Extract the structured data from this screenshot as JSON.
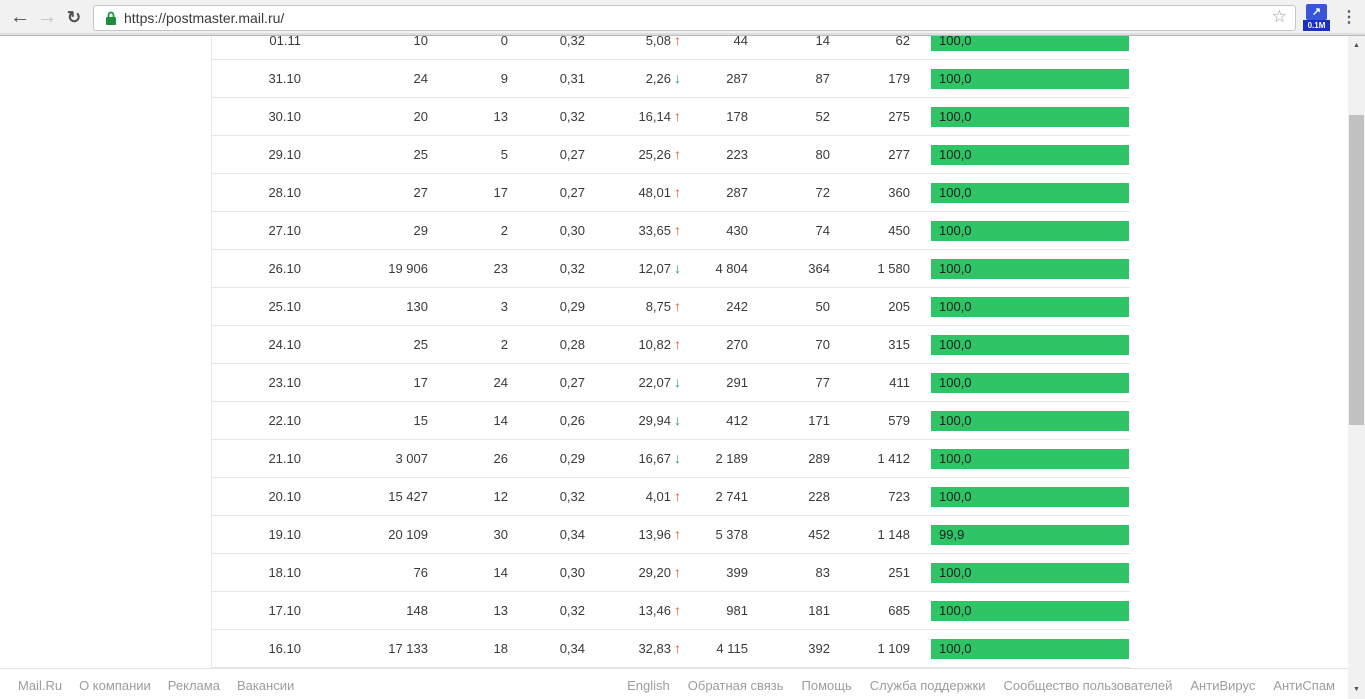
{
  "browser": {
    "url": "https://postmaster.mail.ru/",
    "extension_badge": "0.1M",
    "extension_glyph": "↗",
    "back_glyph": "←",
    "forward_glyph": "→",
    "reload_glyph": "↻",
    "star_glyph": "☆",
    "menu_glyph": "⋮",
    "scroll_up_glyph": "▲",
    "scroll_down_glyph": "▼"
  },
  "colors": {
    "bar_green": "#2fc465",
    "trend_up": "#e0532a",
    "trend_down": "#2ba55a",
    "lock_green": "#1e8e3e"
  },
  "table": {
    "rows": [
      {
        "date": "01.11",
        "v1": "10",
        "v2": "0",
        "v3": "0,32",
        "change": "5,08",
        "dir": "up",
        "v5": "44",
        "v6": "14",
        "v7": "62",
        "bar_label": "100,0",
        "bar_pct": 100.0
      },
      {
        "date": "31.10",
        "v1": "24",
        "v2": "9",
        "v3": "0,31",
        "change": "2,26",
        "dir": "down",
        "v5": "287",
        "v6": "87",
        "v7": "179",
        "bar_label": "100,0",
        "bar_pct": 100.0
      },
      {
        "date": "30.10",
        "v1": "20",
        "v2": "13",
        "v3": "0,32",
        "change": "16,14",
        "dir": "up",
        "v5": "178",
        "v6": "52",
        "v7": "275",
        "bar_label": "100,0",
        "bar_pct": 100.0
      },
      {
        "date": "29.10",
        "v1": "25",
        "v2": "5",
        "v3": "0,27",
        "change": "25,26",
        "dir": "up",
        "v5": "223",
        "v6": "80",
        "v7": "277",
        "bar_label": "100,0",
        "bar_pct": 100.0
      },
      {
        "date": "28.10",
        "v1": "27",
        "v2": "17",
        "v3": "0,27",
        "change": "48,01",
        "dir": "up",
        "v5": "287",
        "v6": "72",
        "v7": "360",
        "bar_label": "100,0",
        "bar_pct": 100.0
      },
      {
        "date": "27.10",
        "v1": "29",
        "v2": "2",
        "v3": "0,30",
        "change": "33,65",
        "dir": "up",
        "v5": "430",
        "v6": "74",
        "v7": "450",
        "bar_label": "100,0",
        "bar_pct": 100.0
      },
      {
        "date": "26.10",
        "v1": "19 906",
        "v2": "23",
        "v3": "0,32",
        "change": "12,07",
        "dir": "down",
        "v5": "4 804",
        "v6": "364",
        "v7": "1 580",
        "bar_label": "100,0",
        "bar_pct": 100.0
      },
      {
        "date": "25.10",
        "v1": "130",
        "v2": "3",
        "v3": "0,29",
        "change": "8,75",
        "dir": "up",
        "v5": "242",
        "v6": "50",
        "v7": "205",
        "bar_label": "100,0",
        "bar_pct": 100.0
      },
      {
        "date": "24.10",
        "v1": "25",
        "v2": "2",
        "v3": "0,28",
        "change": "10,82",
        "dir": "up",
        "v5": "270",
        "v6": "70",
        "v7": "315",
        "bar_label": "100,0",
        "bar_pct": 100.0
      },
      {
        "date": "23.10",
        "v1": "17",
        "v2": "24",
        "v3": "0,27",
        "change": "22,07",
        "dir": "down",
        "v5": "291",
        "v6": "77",
        "v7": "411",
        "bar_label": "100,0",
        "bar_pct": 100.0
      },
      {
        "date": "22.10",
        "v1": "15",
        "v2": "14",
        "v3": "0,26",
        "change": "29,94",
        "dir": "down",
        "v5": "412",
        "v6": "171",
        "v7": "579",
        "bar_label": "100,0",
        "bar_pct": 100.0
      },
      {
        "date": "21.10",
        "v1": "3 007",
        "v2": "26",
        "v3": "0,29",
        "change": "16,67",
        "dir": "down",
        "v5": "2 189",
        "v6": "289",
        "v7": "1 412",
        "bar_label": "100,0",
        "bar_pct": 100.0
      },
      {
        "date": "20.10",
        "v1": "15 427",
        "v2": "12",
        "v3": "0,32",
        "change": "4,01",
        "dir": "up",
        "v5": "2 741",
        "v6": "228",
        "v7": "723",
        "bar_label": "100,0",
        "bar_pct": 100.0
      },
      {
        "date": "19.10",
        "v1": "20 109",
        "v2": "30",
        "v3": "0,34",
        "change": "13,96",
        "dir": "up",
        "v5": "5 378",
        "v6": "452",
        "v7": "1 148",
        "bar_label": "99,9",
        "bar_pct": 99.9
      },
      {
        "date": "18.10",
        "v1": "76",
        "v2": "14",
        "v3": "0,30",
        "change": "29,20",
        "dir": "up",
        "v5": "399",
        "v6": "83",
        "v7": "251",
        "bar_label": "100,0",
        "bar_pct": 100.0
      },
      {
        "date": "17.10",
        "v1": "148",
        "v2": "13",
        "v3": "0,32",
        "change": "13,46",
        "dir": "up",
        "v5": "981",
        "v6": "181",
        "v7": "685",
        "bar_label": "100,0",
        "bar_pct": 100.0
      },
      {
        "date": "16.10",
        "v1": "17 133",
        "v2": "18",
        "v3": "0,34",
        "change": "32,83",
        "dir": "up",
        "v5": "4 115",
        "v6": "392",
        "v7": "1 109",
        "bar_label": "100,0",
        "bar_pct": 100.0
      }
    ]
  },
  "footer": {
    "left_links": [
      "Mail.Ru",
      "О компании",
      "Реклама",
      "Вакансии"
    ],
    "right_links": [
      "English",
      "Обратная связь",
      "Помощь",
      "Служба поддержки",
      "Сообщество пользователей",
      "АнтиВирус",
      "АнтиСпам"
    ]
  }
}
